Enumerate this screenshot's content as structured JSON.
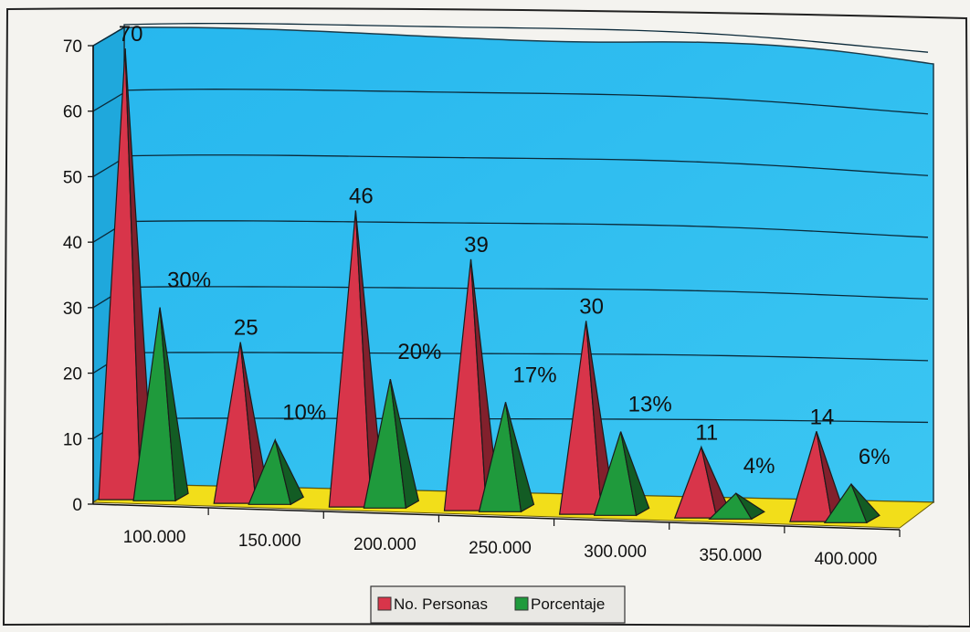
{
  "chart_data": {
    "type": "bar",
    "style": "3d-pyramid",
    "categories": [
      "100.000",
      "150.000",
      "200.000",
      "250.000",
      "300.000",
      "350.000",
      "400.000"
    ],
    "series": [
      {
        "name": "No. Personas",
        "values": [
          70,
          25,
          46,
          39,
          30,
          11,
          14
        ],
        "labels": [
          "70",
          "25",
          "46",
          "39",
          "30",
          "11",
          "14"
        ],
        "color": "#d8354a"
      },
      {
        "name": "Porcentaje",
        "values": [
          30,
          10,
          20,
          17,
          13,
          4,
          6
        ],
        "labels": [
          "30%",
          "10%",
          "20%",
          "17%",
          "13%",
          "4%",
          "6%"
        ],
        "color": "#1f9a3c"
      }
    ],
    "y_ticks": [
      "0",
      "10",
      "20",
      "30",
      "40",
      "50",
      "60",
      "70"
    ],
    "ylim": [
      0,
      70
    ],
    "grid": true,
    "legend_position": "bottom",
    "colors": {
      "wall": "#33c3f0",
      "floor": "#f2de1a",
      "gridline": "#0b2a3a"
    }
  }
}
